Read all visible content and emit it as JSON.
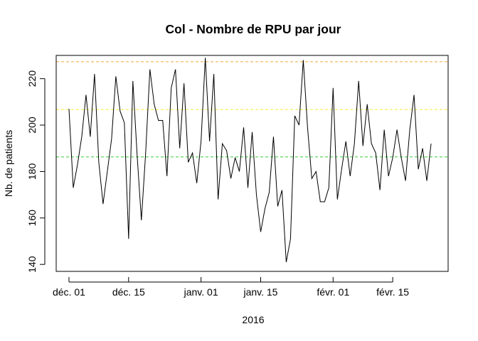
{
  "chart_data": {
    "type": "line",
    "title": "Col - Nombre de RPU par jour",
    "xlabel": "2016",
    "ylabel": "Nb. de patients",
    "x_start": "2015-12-01",
    "x_end": "2016-02-24",
    "x_ticks": [
      {
        "date": "2015-12-01",
        "label": "déc. 01"
      },
      {
        "date": "2015-12-15",
        "label": "déc. 15"
      },
      {
        "date": "2016-01-01",
        "label": "janv. 01"
      },
      {
        "date": "2016-01-15",
        "label": "janv. 15"
      },
      {
        "date": "2016-02-01",
        "label": "févr. 01"
      },
      {
        "date": "2016-02-15",
        "label": "févr. 15"
      }
    ],
    "y_ticks": [
      140,
      160,
      180,
      200,
      220
    ],
    "ylim": [
      137,
      230
    ],
    "xlim": [
      "2015-11-28",
      "2016-02-28"
    ],
    "grid": false,
    "reference_lines": [
      {
        "y": 186.3,
        "color": "#33cc33"
      },
      {
        "y": 206.7,
        "color": "#f2ec3a"
      },
      {
        "y": 227.3,
        "color": "#f2a93a"
      }
    ],
    "series": [
      {
        "color": "#000000",
        "values": [
          207,
          173,
          183,
          195,
          213,
          195,
          222,
          184,
          166,
          180,
          194,
          221,
          206,
          201,
          151,
          219,
          187,
          159,
          188,
          224,
          209,
          202,
          202,
          178,
          216,
          224,
          190,
          218,
          184,
          188,
          175,
          193,
          229,
          193,
          222,
          168,
          192,
          189,
          177,
          186,
          180,
          199,
          173,
          197,
          170,
          154,
          164,
          171,
          195,
          165,
          172,
          141,
          151,
          204,
          200,
          228,
          199,
          177,
          180,
          167,
          167,
          173,
          216,
          168,
          181,
          193,
          178,
          192,
          219,
          191,
          209,
          192,
          188,
          172,
          198,
          178,
          186,
          198,
          186,
          176,
          198,
          213,
          181,
          190,
          176,
          192
        ]
      }
    ]
  }
}
